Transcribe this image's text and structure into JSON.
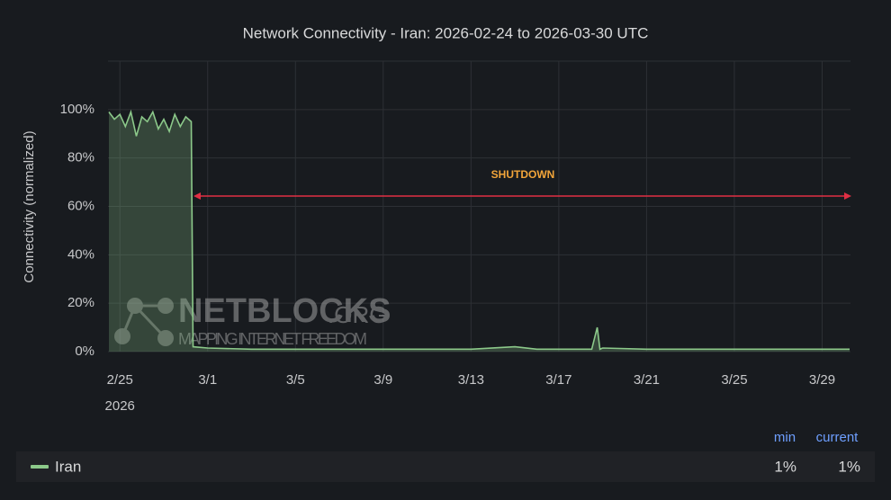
{
  "chart_data": {
    "type": "line",
    "title": "Network Connectivity - Iran: 2026-02-24 to 2026-03-30 UTC",
    "y_label": "Connectivity (normalized)",
    "annotation": "SHUTDOWN",
    "watermark": {
      "name": "NETBLOCKS",
      "domain": ".ORG",
      "tagline": "MAPPING INTERNET FREEDOM"
    },
    "x": [
      "2026-02-24T12:00",
      "2026-02-24T18:00",
      "2026-02-25T00:00",
      "2026-02-25T06:00",
      "2026-02-25T12:00",
      "2026-02-25T18:00",
      "2026-02-26T00:00",
      "2026-02-26T06:00",
      "2026-02-26T12:00",
      "2026-02-26T18:00",
      "2026-02-27T00:00",
      "2026-02-27T06:00",
      "2026-02-27T12:00",
      "2026-02-27T18:00",
      "2026-02-28T00:00",
      "2026-02-28T06:00",
      "2026-02-28T08:00",
      "2026-03-01T00:00",
      "2026-03-03T00:00",
      "2026-03-05T00:00",
      "2026-03-07T00:00",
      "2026-03-09T00:00",
      "2026-03-11T00:00",
      "2026-03-13T00:00",
      "2026-03-15T00:00",
      "2026-03-16T00:00",
      "2026-03-18T12:00",
      "2026-03-18T18:00",
      "2026-03-18T21:00",
      "2026-03-19T00:00",
      "2026-03-21T00:00",
      "2026-03-23T00:00",
      "2026-03-25T00:00",
      "2026-03-27T00:00",
      "2026-03-29T00:00",
      "2026-03-30T06:00"
    ],
    "series": [
      {
        "name": "Iran",
        "color": "#8cc98a",
        "values": [
          99,
          96,
          98,
          93,
          99,
          89,
          97,
          95,
          99,
          92,
          96,
          91,
          98,
          93,
          97,
          95,
          2,
          1.5,
          1,
          1,
          1,
          1,
          1,
          1,
          2,
          1,
          1,
          10,
          1,
          1.5,
          1,
          1,
          1,
          1,
          1,
          1
        ],
        "legend_values": [
          1,
          1
        ],
        "legend_value_labels": [
          "1%",
          "1%"
        ]
      }
    ],
    "legend_columns": [
      "min",
      "current"
    ],
    "xlim": [
      "2026-02-24T11:00",
      "2026-03-30T07:00"
    ],
    "xticks": [
      {
        "value": "2026-02-25T00:00",
        "label": "2/25"
      },
      {
        "value": "2026-03-01T00:00",
        "label": "3/1"
      },
      {
        "value": "2026-03-05T00:00",
        "label": "3/5"
      },
      {
        "value": "2026-03-09T00:00",
        "label": "3/9"
      },
      {
        "value": "2026-03-13T00:00",
        "label": "3/13"
      },
      {
        "value": "2026-03-17T00:00",
        "label": "3/17"
      },
      {
        "value": "2026-03-21T00:00",
        "label": "3/21"
      },
      {
        "value": "2026-03-25T00:00",
        "label": "3/25"
      },
      {
        "value": "2026-03-29T00:00",
        "label": "3/29"
      }
    ],
    "x_year_label": "2026",
    "ylim": [
      0,
      120
    ],
    "yticks": [
      {
        "value": 0,
        "label": "0%"
      },
      {
        "value": 20,
        "label": "20%"
      },
      {
        "value": 40,
        "label": "40%"
      },
      {
        "value": 60,
        "label": "60%"
      },
      {
        "value": 80,
        "label": "80%"
      },
      {
        "value": 100,
        "label": "100%"
      }
    ],
    "grid": true
  }
}
